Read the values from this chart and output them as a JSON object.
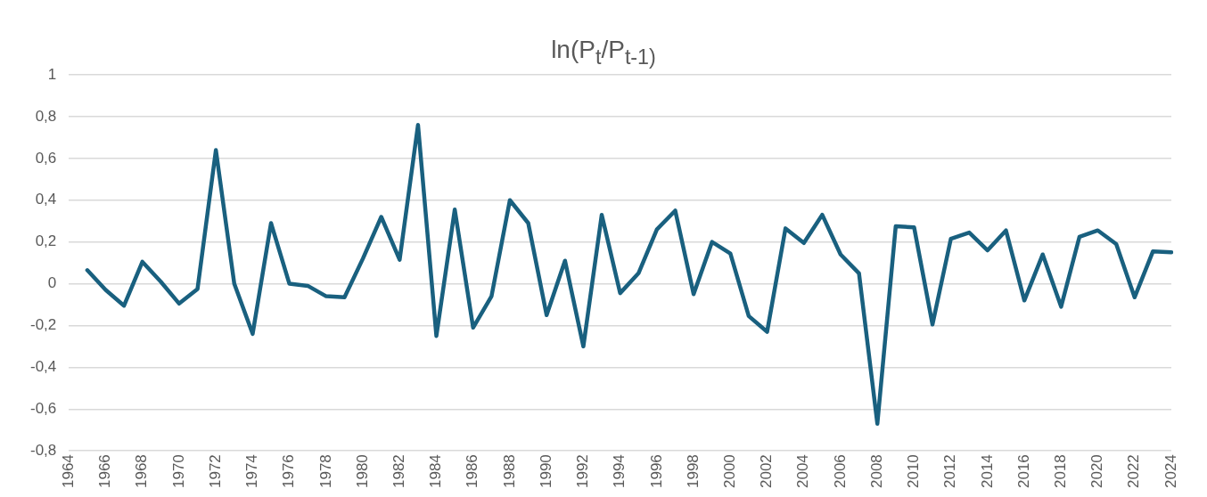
{
  "chart_data": {
    "type": "line",
    "title": "ln(P$_{t}$/P$_{t-1)}$",
    "categories": [
      "1964",
      null,
      "1966",
      null,
      "1968",
      null,
      "1970",
      null,
      "1972",
      null,
      "1974",
      null,
      "1976",
      null,
      "1978",
      null,
      "1980",
      null,
      "1982",
      null,
      "1984",
      null,
      "1986",
      null,
      "1988",
      null,
      "1990",
      null,
      "1992",
      null,
      "1994",
      null,
      "1996",
      null,
      "1998",
      null,
      "2000",
      null,
      "2002",
      null,
      "2004",
      null,
      "2006",
      null,
      "2008",
      null,
      "2010",
      null,
      "2012",
      null,
      "2014",
      null,
      "2016",
      null,
      "2018",
      null,
      "2020",
      null,
      "2022",
      null,
      "2024"
    ],
    "series": [
      {
        "color": "#19607f",
        "values": [
          null,
          0.065,
          -0.03,
          -0.105,
          0.105,
          0.01,
          -0.095,
          -0.025,
          0.64,
          0.0,
          -0.24,
          0.29,
          0.0,
          -0.01,
          -0.06,
          -0.065,
          0.12,
          0.32,
          0.115,
          0.76,
          -0.25,
          0.355,
          -0.21,
          -0.06,
          0.4,
          0.29,
          -0.15,
          0.11,
          -0.3,
          0.33,
          -0.045,
          0.05,
          0.26,
          0.35,
          -0.05,
          0.2,
          0.145,
          -0.155,
          -0.23,
          0.265,
          0.195,
          0.33,
          0.14,
          0.05,
          -0.67,
          0.275,
          0.27,
          -0.195,
          0.215,
          0.245,
          0.16,
          0.255,
          -0.08,
          0.14,
          -0.11,
          0.225,
          0.255,
          0.19,
          -0.065,
          0.155,
          0.15
        ]
      }
    ],
    "ylim": [
      -0.8,
      1
    ],
    "yticks": [
      {
        "value": -0.8,
        "label": "-0,8"
      },
      {
        "value": -0.6,
        "label": "-0,6"
      },
      {
        "value": -0.4,
        "label": "-0,4"
      },
      {
        "value": -0.2,
        "label": "-0,2"
      },
      0,
      {
        "value": 0.2,
        "label": "0,2"
      },
      {
        "value": 0.4,
        "label": "0,4"
      },
      {
        "value": 0.6,
        "label": "0,6"
      },
      {
        "value": 0.8,
        "label": "0,8"
      },
      1
    ],
    "grid": "y",
    "marker": "none",
    "line_style": "solid",
    "legend": false
  }
}
